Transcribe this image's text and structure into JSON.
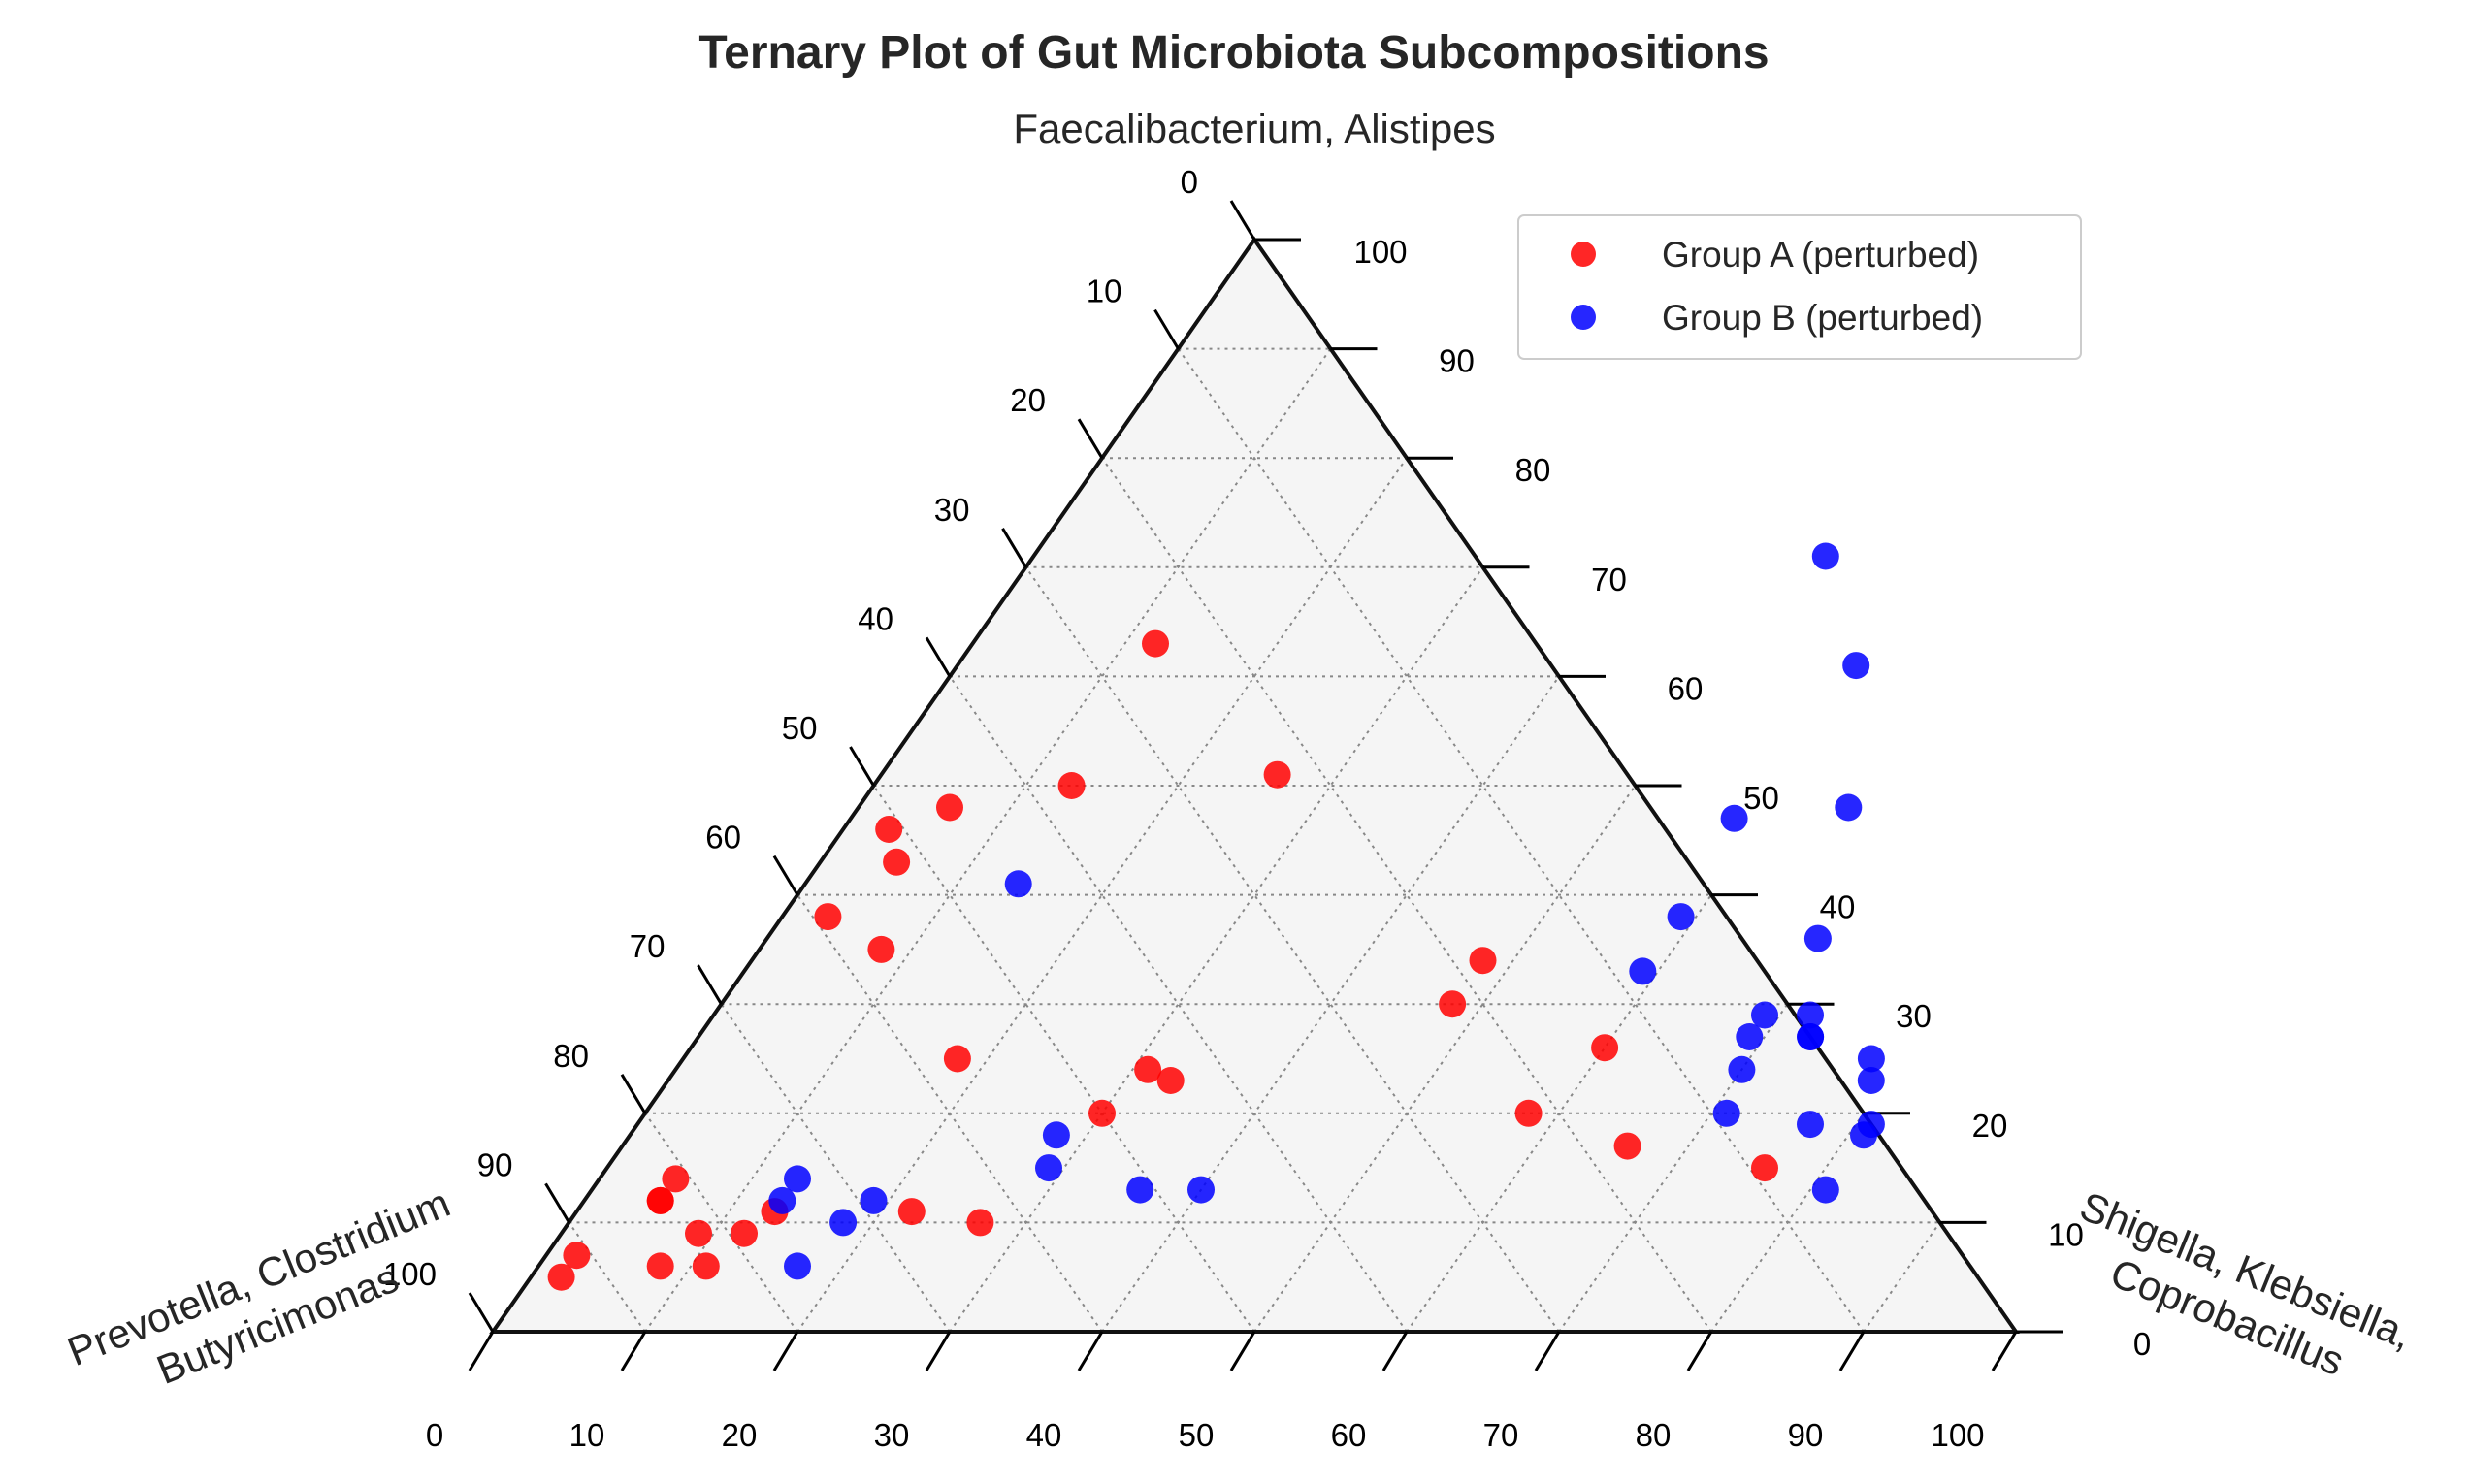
{
  "chart_data": {
    "type": "scatter",
    "subtype": "ternary",
    "title": "Ternary Plot of Gut Microbiota Subcompositions",
    "axes": {
      "top": "Faecalibacterium, Alistipes",
      "left": "Prevotella, Clostridium\nButyricimonas",
      "right": "Shigella, Klebsiella,\nCoprobacillus"
    },
    "ticks": [
      "0",
      "10",
      "20",
      "30",
      "40",
      "50",
      "60",
      "70",
      "80",
      "90",
      "100"
    ],
    "grid": true,
    "legend_position": "top-right",
    "colors": {
      "Group A (perturbed)": "#ff0000",
      "Group B (perturbed)": "#0000ff",
      "plot_background": "#f5f5f5"
    },
    "series": [
      {
        "name": "Group A (perturbed)",
        "color": "#ff0000",
        "points": [
          {
            "top": 63,
            "right": 12
          },
          {
            "top": 50,
            "right": 13
          },
          {
            "top": 48,
            "right": 6
          },
          {
            "top": 46,
            "right": 3
          },
          {
            "top": 43,
            "right": 5
          },
          {
            "top": 38,
            "right": 3
          },
          {
            "top": 35,
            "right": 8
          },
          {
            "top": 25,
            "right": 18
          },
          {
            "top": 24,
            "right": 31
          },
          {
            "top": 23,
            "right": 33
          },
          {
            "top": 20,
            "right": 30
          },
          {
            "top": 11,
            "right": 22
          },
          {
            "top": 10,
            "right": 27
          },
          {
            "top": 11,
            "right": 13
          },
          {
            "top": 9,
            "right": 12
          },
          {
            "top": 12,
            "right": 5
          },
          {
            "top": 9,
            "right": 9
          },
          {
            "top": 6,
            "right": 11
          },
          {
            "top": 6,
            "right": 8
          },
          {
            "top": 7,
            "right": 2
          },
          {
            "top": 14,
            "right": 5
          },
          {
            "top": 12,
            "right": 5
          },
          {
            "top": 5,
            "right": 2
          },
          {
            "top": 51,
            "right": 26
          },
          {
            "top": 34,
            "right": 48
          },
          {
            "top": 30,
            "right": 48
          },
          {
            "top": 26,
            "right": 60
          },
          {
            "top": 20,
            "right": 58
          },
          {
            "top": 17,
            "right": 66
          },
          {
            "top": 15,
            "right": 76
          }
        ]
      },
      {
        "name": "Group B (perturbed)",
        "color": "#0000ff",
        "points": [
          {
            "top": 71,
            "right": 52
          },
          {
            "top": 61,
            "right": 59
          },
          {
            "top": 47,
            "right": 58
          },
          {
            "top": 48,
            "right": 65
          },
          {
            "top": 38,
            "right": 59
          },
          {
            "top": 33,
            "right": 59
          },
          {
            "top": 36,
            "right": 69
          },
          {
            "top": 29,
            "right": 69
          },
          {
            "top": 27,
            "right": 69
          },
          {
            "top": 29,
            "right": 72
          },
          {
            "top": 27,
            "right": 73
          },
          {
            "top": 27,
            "right": 73
          },
          {
            "top": 24,
            "right": 70
          },
          {
            "top": 20,
            "right": 71
          },
          {
            "top": 25,
            "right": 78
          },
          {
            "top": 23,
            "right": 79
          },
          {
            "top": 19,
            "right": 77
          },
          {
            "top": 19,
            "right": 81
          },
          {
            "top": 18,
            "right": 81
          },
          {
            "top": 13,
            "right": 81
          },
          {
            "top": 41,
            "right": 14
          },
          {
            "top": 18,
            "right": 28
          },
          {
            "top": 15,
            "right": 29
          },
          {
            "top": 13,
            "right": 36
          },
          {
            "top": 13,
            "right": 40
          },
          {
            "top": 14,
            "right": 13
          },
          {
            "top": 12,
            "right": 13
          },
          {
            "top": 12,
            "right": 19
          },
          {
            "top": 10,
            "right": 18
          },
          {
            "top": 6,
            "right": 17
          }
        ]
      }
    ]
  }
}
